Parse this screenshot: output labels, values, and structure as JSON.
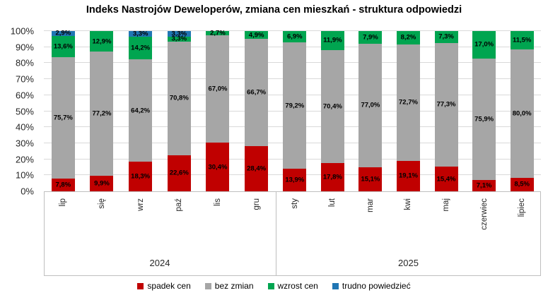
{
  "title": "Indeks Nastrojów Deweloperów, zmiana cen mieszkań - struktura odpowiedzi",
  "chart_data": {
    "type": "bar",
    "variant": "stacked-100-percent-column",
    "title": "Indeks Nastrojów Deweloperów, zmiana cen mieszkań - struktura odpowiedzi",
    "categories": [
      "lip",
      "się",
      "wrz",
      "paź",
      "lis",
      "gru",
      "sty",
      "lut",
      "mar",
      "kwi",
      "maj",
      "czerwiec",
      "lipiec"
    ],
    "groups": [
      {
        "label": "2024",
        "count": 6
      },
      {
        "label": "2025",
        "count": 7
      }
    ],
    "series": [
      {
        "name": "spadek cen",
        "color": "#C00000",
        "values": [
          7.8,
          9.9,
          18.3,
          22.6,
          30.4,
          28.4,
          13.9,
          17.8,
          15.1,
          19.1,
          15.4,
          7.1,
          8.5
        ]
      },
      {
        "name": "bez zmian",
        "color": "#A6A6A6",
        "values": [
          75.7,
          77.2,
          64.2,
          70.8,
          67.0,
          66.7,
          79.2,
          70.4,
          77.0,
          72.7,
          77.3,
          75.9,
          80.0
        ]
      },
      {
        "name": "wzrost cen",
        "color": "#00A550",
        "values": [
          13.6,
          12.9,
          14.2,
          3.3,
          2.7,
          4.9,
          6.9,
          11.9,
          7.9,
          8.2,
          7.3,
          17.0,
          11.5
        ]
      },
      {
        "name": "trudno powiedzieć",
        "color": "#2076B4",
        "values": [
          2.9,
          0,
          3.3,
          3.3,
          0,
          0,
          0,
          0,
          0,
          0,
          0,
          0,
          0
        ]
      }
    ],
    "y_ticks": [
      "0%",
      "10%",
      "20%",
      "30%",
      "40%",
      "50%",
      "60%",
      "70%",
      "80%",
      "90%",
      "100%"
    ],
    "ylim": [
      0,
      100
    ],
    "grid": true,
    "decimal_separator": ",",
    "label_suffix": "%",
    "legend_position": "bottom"
  },
  "layout_colors": {
    "gridline": "#D9D9D9",
    "axis_line": "#BFBFBF",
    "tick_text": "#262626"
  }
}
